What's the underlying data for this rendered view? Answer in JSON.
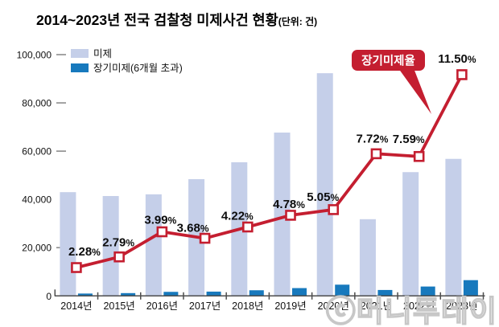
{
  "title": {
    "text": "2014~2023년 전국 검찰청 미제사건 현황",
    "unit": "(단위: 건)"
  },
  "legend": [
    {
      "label": "미제",
      "color": "#c5cfe9"
    },
    {
      "label": "장기미제(6개월 초과)",
      "color": "#1779bd"
    }
  ],
  "callout": {
    "label": "장기미제율",
    "color": "#c41e30"
  },
  "watermark": "ⓒ머니투데이",
  "chart_data": {
    "type": "bar",
    "subtype": "grouped-bars-with-rate-line",
    "categories": [
      "2014년",
      "2015년",
      "2016년",
      "2017년",
      "2018년",
      "2019년",
      "2020년",
      "2021년",
      "2022년",
      "2023년"
    ],
    "series": [
      {
        "name": "미제",
        "type": "bar",
        "color": "#c5cfe9",
        "values": [
          43000,
          41400,
          42100,
          48400,
          55400,
          67700,
          92300,
          31800,
          51300,
          56800
        ]
      },
      {
        "name": "장기미제(6개월 초과)",
        "type": "bar",
        "color": "#1779bd",
        "values": [
          980,
          1160,
          1680,
          1780,
          2340,
          3240,
          4660,
          2460,
          3890,
          6530
        ]
      },
      {
        "name": "장기미제율",
        "type": "line",
        "color": "#c41e30",
        "unit": "%",
        "values": [
          2.28,
          2.79,
          3.99,
          3.68,
          4.22,
          4.78,
          5.05,
          7.72,
          7.59,
          11.5
        ],
        "labels": [
          "2.28%",
          "2.79%",
          "3.99%",
          "3.68%",
          "4.22%",
          "4.78%",
          "5.05%",
          "7.72%",
          "7.59%",
          "11.50%"
        ]
      }
    ],
    "y_axis": {
      "ticks": [
        0,
        20000,
        40000,
        60000,
        80000,
        100000
      ],
      "tick_labels": [
        "0",
        "20,000",
        "40,000",
        "60,000",
        "80,000",
        "100,000"
      ],
      "max": 100000
    },
    "grid": false,
    "legend_position": "top-left",
    "line_marker": "open-square"
  }
}
